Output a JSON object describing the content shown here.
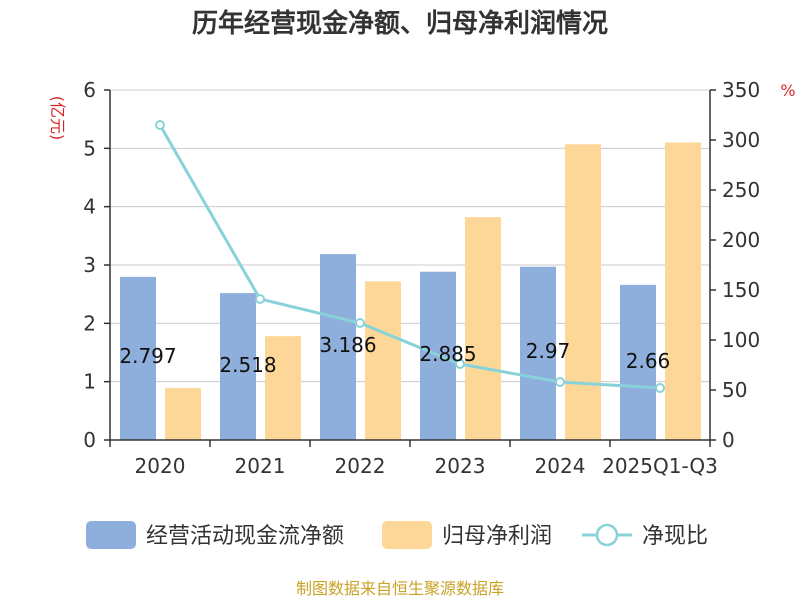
{
  "chart_data": {
    "type": "bar",
    "title": "历年经营现金净额、归母净利润情况",
    "categories": [
      "2020",
      "2021",
      "2022",
      "2023",
      "2024",
      "2025Q1-Q3"
    ],
    "y_left": {
      "unit": "(亿元)",
      "ylim": [
        0,
        6
      ],
      "ticks": [
        "0",
        "1",
        "2",
        "3",
        "4",
        "5",
        "6"
      ]
    },
    "y_right": {
      "unit": "%",
      "ylim": [
        0,
        350
      ],
      "ticks": [
        "0",
        "50",
        "100",
        "150",
        "200",
        "250",
        "300",
        "350"
      ]
    },
    "series": [
      {
        "name": "经营活动现金流净额",
        "type": "bar",
        "axis": "left",
        "color": "#8eaedc",
        "values": [
          2.797,
          2.518,
          3.186,
          2.885,
          2.97,
          2.66
        ],
        "labels": [
          "2.797",
          "2.518",
          "3.186",
          "2.885",
          "2.97",
          "2.66"
        ]
      },
      {
        "name": "归母净利润",
        "type": "bar",
        "axis": "left",
        "color": "#fdd797",
        "values": [
          0.89,
          1.78,
          2.72,
          3.82,
          5.07,
          5.1
        ]
      },
      {
        "name": "净现比",
        "type": "line",
        "axis": "right",
        "color": "#88d3d9",
        "values": [
          315,
          141,
          117,
          76,
          58,
          52
        ]
      }
    ],
    "grid": true,
    "legend_position": "bottom"
  },
  "unit_color": "#d62728",
  "source_text": "制图数据来自恒生聚源数据库",
  "source_color": "#c9a227"
}
